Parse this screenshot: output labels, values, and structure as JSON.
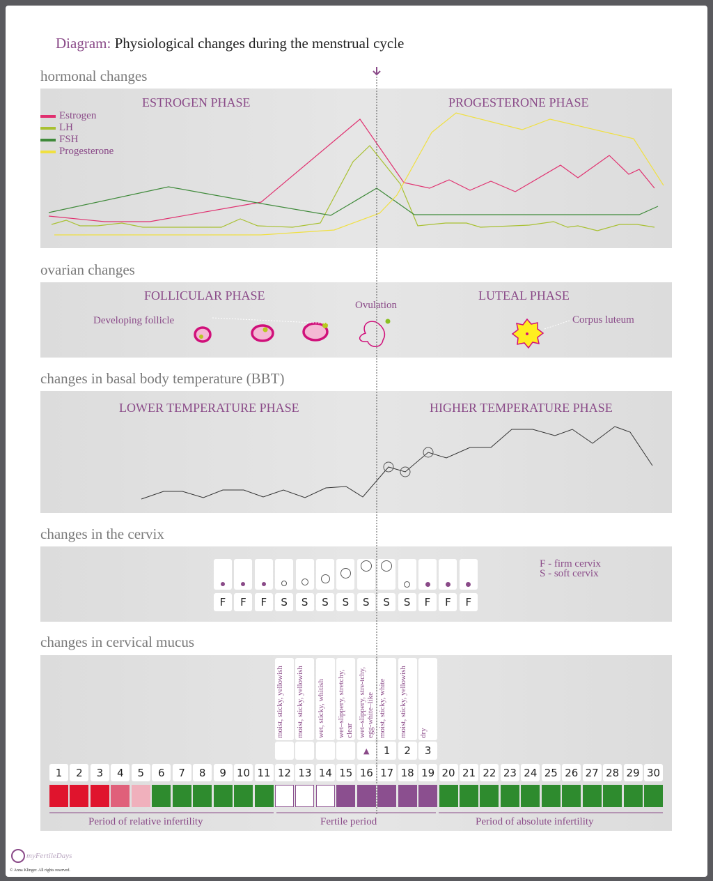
{
  "title": {
    "prefix": "Diagram:",
    "text": "Physiological changes during the menstrual cycle"
  },
  "colors": {
    "purple": "#8a4a88",
    "estrogen": "#e0306f",
    "lh": "#a8c030",
    "fsh": "#3f8a3a",
    "progesterone": "#f0e040",
    "red": "#e0142d",
    "pink_mid": "#e0607a",
    "pink_light": "#f0b0bc",
    "green": "#2e8b2e",
    "fertile_purple": "#8b4f8f"
  },
  "hormonal": {
    "heading": "hormonal changes",
    "left_phase": "ESTROGEN PHASE",
    "right_phase": "PROGESTERONE PHASE",
    "legend": [
      {
        "label": "Estrogen",
        "color": "#e0306f"
      },
      {
        "label": "LH",
        "color": "#a8c030"
      },
      {
        "label": "FSH",
        "color": "#3f8a3a"
      },
      {
        "label": "Progesterone",
        "color": "#f0e040"
      }
    ]
  },
  "ovarian": {
    "heading": "ovarian changes",
    "left_phase": "FOLLICULAR PHASE",
    "right_phase": "LUTEAL PHASE",
    "developing": "Developing follicle",
    "ovulation": "Ovulation",
    "corpus": "Corpus luteum"
  },
  "bbt": {
    "heading": "changes in basal body temperature (BBT)",
    "left_phase": "LOWER TEMPERATURE PHASE",
    "right_phase": "HIGHER TEMPERATURE PHASE"
  },
  "cervix": {
    "heading": "changes in the cervix",
    "letters": [
      "F",
      "F",
      "F",
      "S",
      "S",
      "S",
      "S",
      "S",
      "S",
      "S",
      "F",
      "F",
      "F"
    ],
    "legend_f": "F - firm cervix",
    "legend_s": "S - soft cervix"
  },
  "mucus": {
    "heading": "changes in cervical mucus",
    "descriptions": [
      "moist, sticky, yellowish",
      "moist, sticky, yellowish",
      "wet, sticky, whitish",
      "wet–slippery, stretchy, clear",
      "wet–slippery, stre-tchy, egg-white–like",
      "moist, sticky, white",
      "moist, sticky, yellowish",
      "dry"
    ],
    "markers": [
      "",
      "",
      "",
      "",
      "▲",
      "1",
      "2",
      "3"
    ],
    "days": [
      "1",
      "2",
      "3",
      "4",
      "5",
      "6",
      "7",
      "8",
      "9",
      "10",
      "11",
      "12",
      "13",
      "14",
      "15",
      "16",
      "17",
      "18",
      "19",
      "20",
      "21",
      "22",
      "23",
      "24",
      "25",
      "26",
      "27",
      "28",
      "29",
      "30"
    ],
    "periods": [
      "Period of relative infertility",
      "Fertile period",
      "Period of absolute infertility"
    ]
  },
  "footer": {
    "logo": "myFertileDays",
    "copyright": "© Anna Klinger. All rights reserved."
  }
}
